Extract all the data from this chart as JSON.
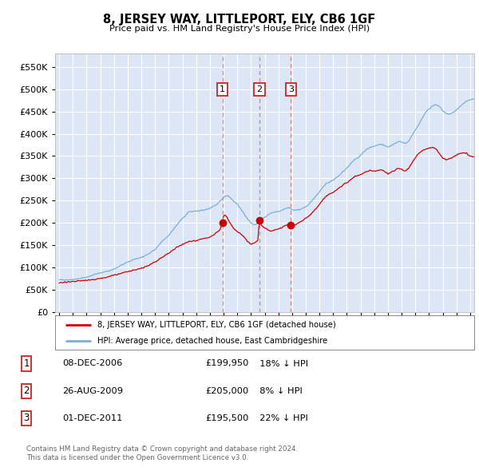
{
  "title": "8, JERSEY WAY, LITTLEPORT, ELY, CB6 1GF",
  "subtitle": "Price paid vs. HM Land Registry's House Price Index (HPI)",
  "ylabel_ticks": [
    0,
    50000,
    100000,
    150000,
    200000,
    250000,
    300000,
    350000,
    400000,
    450000,
    500000,
    550000
  ],
  "ylim": [
    0,
    580000
  ],
  "xlim_start": 1994.7,
  "xlim_end": 2025.3,
  "background_color": "#dce6f5",
  "grid_color": "#ffffff",
  "red_line_color": "#cc0000",
  "blue_line_color": "#7bafd4",
  "transaction_line_color": "#e8a0a0",
  "transactions": [
    {
      "year": 2006.92,
      "price": 199950,
      "label": "1",
      "date": "08-DEC-2006",
      "pct": "18%",
      "direction": "↓"
    },
    {
      "year": 2009.62,
      "price": 205000,
      "label": "2",
      "date": "26-AUG-2009",
      "pct": "8%",
      "direction": "↓"
    },
    {
      "year": 2011.92,
      "price": 195500,
      "label": "3",
      "date": "01-DEC-2011",
      "pct": "22%",
      "direction": "↓"
    }
  ],
  "legend_red_label": "8, JERSEY WAY, LITTLEPORT, ELY, CB6 1GF (detached house)",
  "legend_blue_label": "HPI: Average price, detached house, East Cambridgeshire",
  "footer1": "Contains HM Land Registry data © Crown copyright and database right 2024.",
  "footer2": "This data is licensed under the Open Government Licence v3.0."
}
